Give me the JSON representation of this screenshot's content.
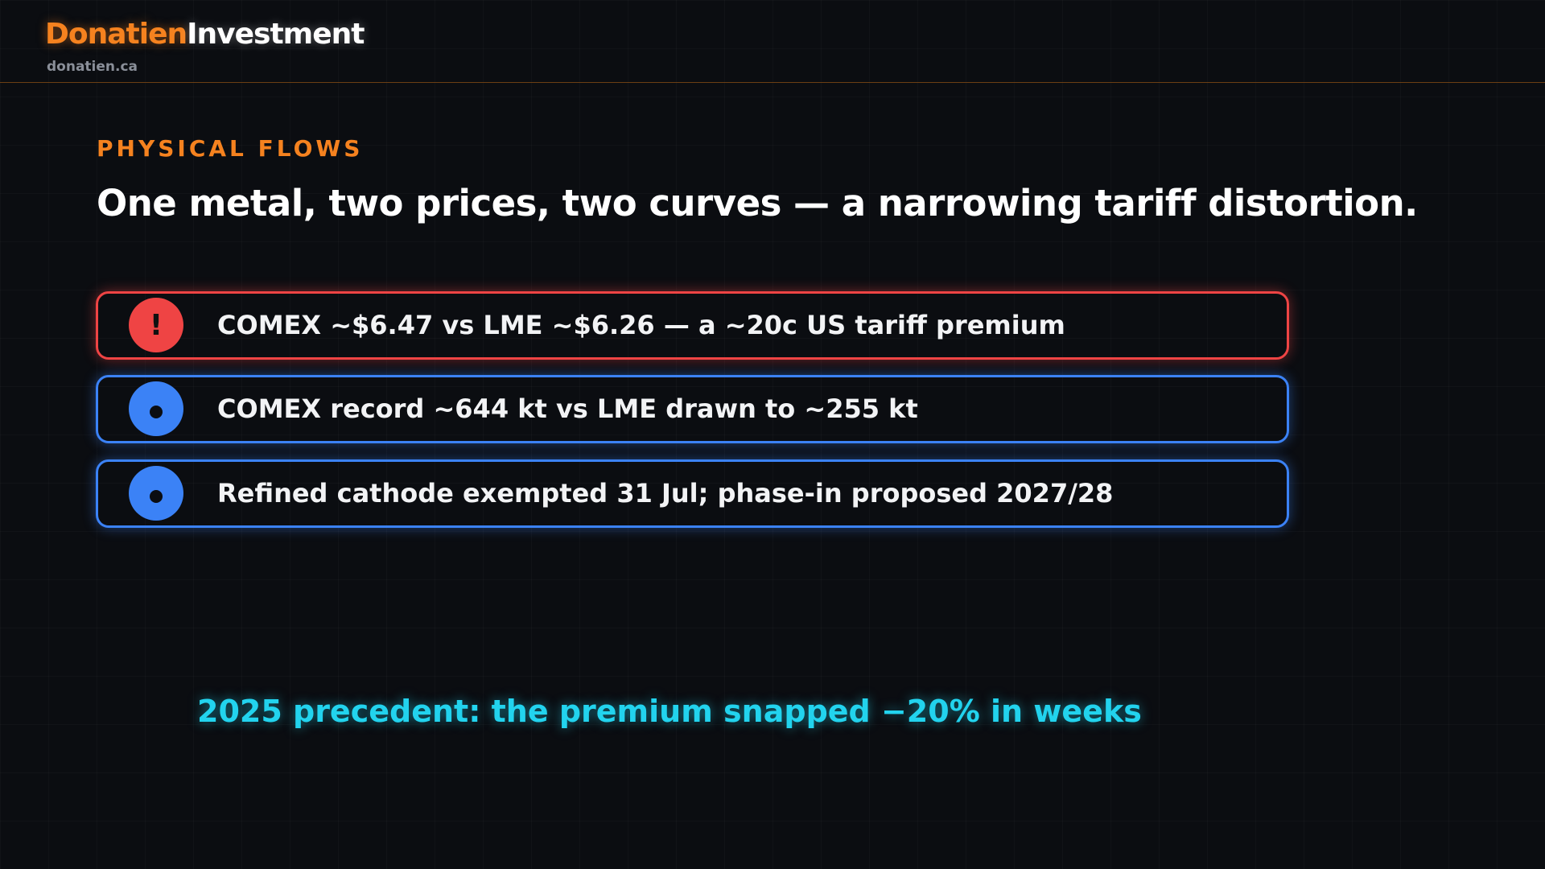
{
  "header": {
    "brand_first": "Donatien",
    "brand_second": "Investment",
    "site": "donatien.ca"
  },
  "section": {
    "kicker": "PHYSICAL FLOWS",
    "title": "One metal, two prices, two curves — a narrowing tariff distortion."
  },
  "items": [
    {
      "icon": "!",
      "text": "COMEX ~$6.47 vs LME ~$6.26 — a ~20c US tariff premium"
    },
    {
      "text": "COMEX record ~644 kt vs LME drawn to ~255 kt"
    },
    {
      "text": "Refined cathode exempted 31 Jul; phase-in proposed 2027/28"
    }
  ],
  "callout": "2025 precedent: the premium snapped −20% in weeks"
}
